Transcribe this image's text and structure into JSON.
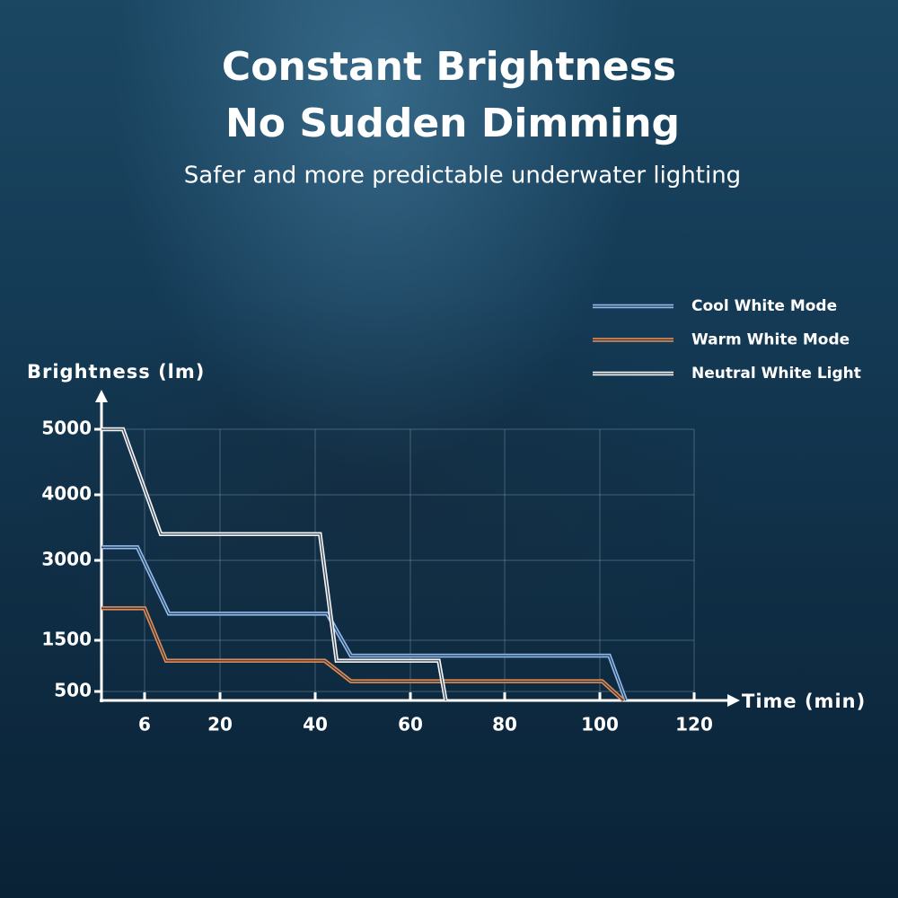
{
  "chart_data": {
    "type": "line",
    "title": [
      "Constant Brightness",
      "No Sudden Dimming"
    ],
    "subtitle": "Safer and more predictable underwater lighting",
    "y_label": "Brightness (lm)",
    "x_label": "Time (min)",
    "xlim": [
      0,
      125
    ],
    "xticks": [
      6,
      20,
      40,
      60,
      80,
      100,
      120
    ],
    "ylim": [
      0,
      5500
    ],
    "yticks": [
      500,
      1500,
      3000,
      4000,
      5000
    ],
    "grid": true,
    "legend": "top-right",
    "series": [
      {
        "name": "Cool White Mode",
        "color": "#8fb8ea",
        "x": [
          0,
          5,
          10.5,
          42.5,
          47.5,
          102,
          105.5
        ],
        "values": [
          3200,
          3200,
          2000,
          2000,
          1200,
          1200,
          0
        ]
      },
      {
        "name": "Warm White Mode",
        "color": "#e08a55",
        "x": [
          0,
          6,
          10,
          42,
          47.5,
          100.5,
          105
        ],
        "values": [
          2100,
          2100,
          1100,
          1100,
          700,
          700,
          0
        ]
      },
      {
        "name": "Neutral White Light",
        "color": "#f2f2f2",
        "x": [
          0,
          3,
          9,
          41,
          44.5,
          66,
          67.5
        ],
        "values": [
          5000,
          5000,
          3400,
          3400,
          1100,
          1100,
          0
        ]
      }
    ]
  }
}
